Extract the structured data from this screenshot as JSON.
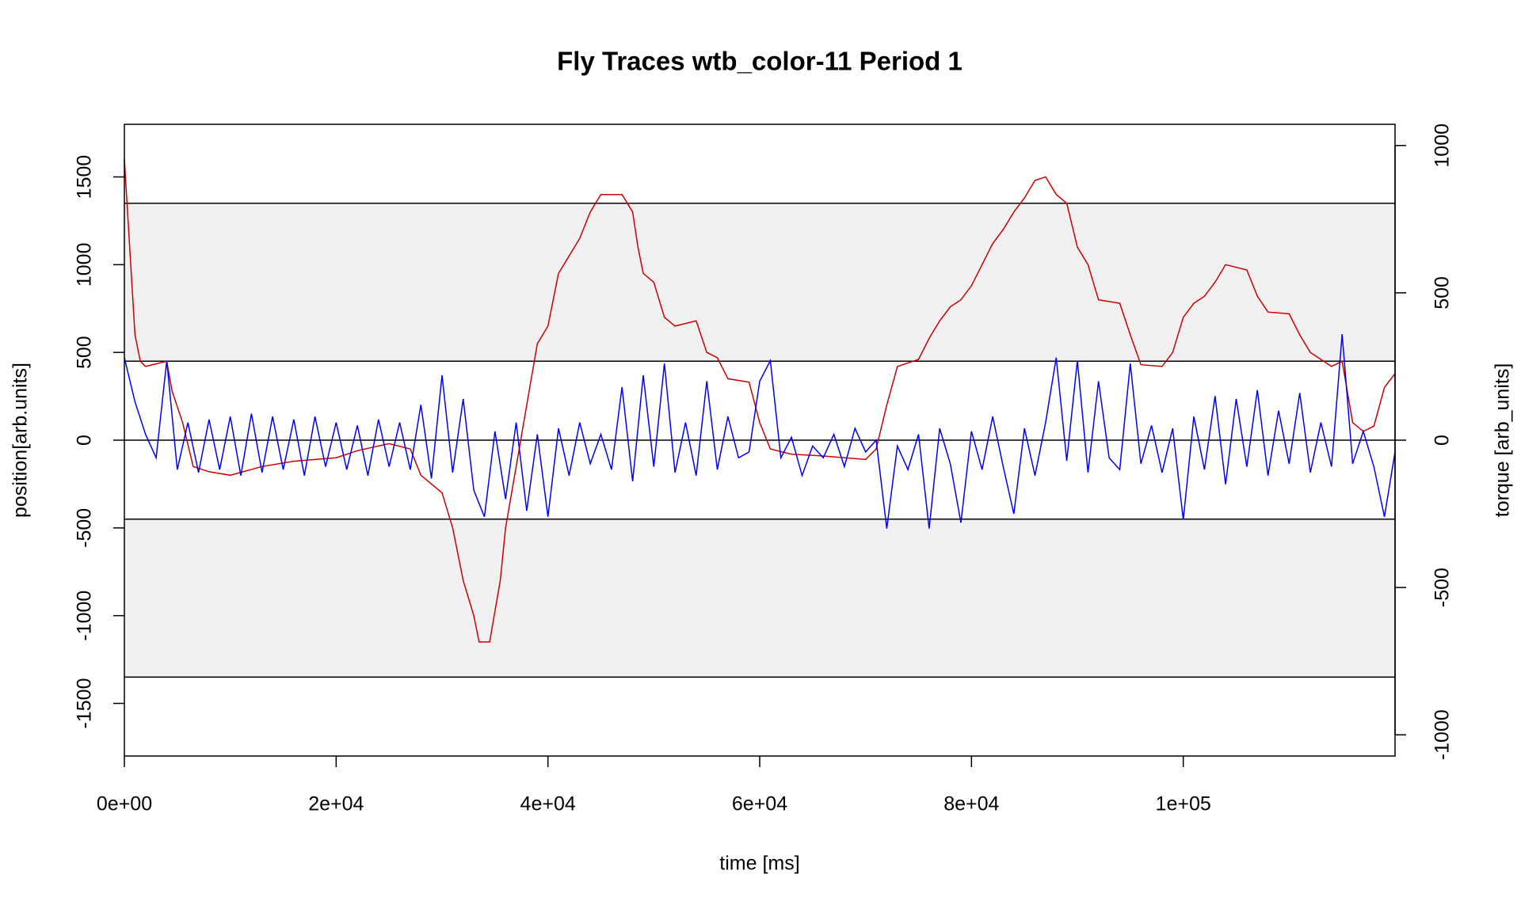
{
  "chart_data": {
    "type": "line",
    "title": "Fly Traces wtb_color-11 Period 1",
    "xlabel": "time [ms]",
    "ylabel": "position[arb.units]",
    "y2label": "torque [arb_units]",
    "xlim": [
      0,
      120000
    ],
    "xticks": [
      {
        "value": 0,
        "label": "0e+00"
      },
      {
        "value": 20000,
        "label": "2e+04"
      },
      {
        "value": 40000,
        "label": "4e+04"
      },
      {
        "value": 60000,
        "label": "6e+04"
      },
      {
        "value": 80000,
        "label": "8e+04"
      },
      {
        "value": 100000,
        "label": "1e+05"
      }
    ],
    "ylim": [
      -1800,
      1800
    ],
    "yticks": [
      -1500,
      -1000,
      -500,
      0,
      500,
      1000,
      1500
    ],
    "y2lim": [
      -1072,
      1072
    ],
    "y2ticks": [
      -1000,
      -500,
      0,
      500,
      1000
    ],
    "hlines": [
      1350,
      450,
      0,
      -450,
      -1350
    ],
    "bands": [
      [
        450,
        1350
      ],
      [
        -1350,
        -450
      ]
    ],
    "band_color": "#f0f0f0",
    "series": [
      {
        "name": "position",
        "color": "#cc0000",
        "x": [
          0,
          1000,
          1500,
          2000,
          4000,
          4500,
          5500,
          6500,
          8000,
          10000,
          13000,
          16000,
          20000,
          22000,
          25000,
          27000,
          28000,
          30000,
          31000,
          32000,
          33000,
          33500,
          34500,
          35500,
          36000,
          37000,
          38000,
          39000,
          40000,
          41000,
          42000,
          43000,
          44000,
          45000,
          47000,
          48000,
          48500,
          49000,
          50000,
          51000,
          52000,
          54000,
          55000,
          56000,
          57000,
          59000,
          60000,
          61000,
          63000,
          66000,
          70000,
          71000,
          72000,
          73000,
          75000,
          76000,
          77000,
          78000,
          79000,
          80000,
          81000,
          82000,
          83000,
          84000,
          85000,
          86000,
          87000,
          88000,
          89000,
          90000,
          91000,
          92000,
          94000,
          95000,
          96000,
          98000,
          99000,
          100000,
          101000,
          102000,
          103000,
          104000,
          106000,
          107000,
          108000,
          110000,
          111000,
          112000,
          113000,
          114000,
          115000,
          116000,
          117000,
          118000,
          119000,
          120000
        ],
        "values": [
          1600,
          600,
          450,
          420,
          450,
          280,
          100,
          -150,
          -180,
          -200,
          -150,
          -120,
          -100,
          -60,
          -20,
          -50,
          -200,
          -300,
          -500,
          -800,
          -1000,
          -1150,
          -1150,
          -800,
          -500,
          -150,
          200,
          550,
          650,
          950,
          1050,
          1150,
          1300,
          1400,
          1400,
          1300,
          1100,
          950,
          900,
          700,
          650,
          680,
          500,
          470,
          350,
          330,
          100,
          -50,
          -80,
          -90,
          -110,
          -50,
          200,
          420,
          460,
          580,
          680,
          760,
          800,
          880,
          1000,
          1120,
          1200,
          1300,
          1380,
          1480,
          1500,
          1400,
          1350,
          1100,
          1000,
          800,
          780,
          600,
          430,
          420,
          500,
          700,
          780,
          820,
          900,
          1000,
          970,
          820,
          730,
          720,
          600,
          500,
          460,
          420,
          450,
          100,
          50,
          80,
          300,
          380
        ]
      },
      {
        "name": "torque",
        "color": "#0000ff",
        "axis": "y2",
        "x": [
          0,
          1000,
          2000,
          3000,
          4000,
          5000,
          6000,
          7000,
          8000,
          9000,
          10000,
          11000,
          12000,
          13000,
          14000,
          15000,
          16000,
          17000,
          18000,
          19000,
          20000,
          21000,
          22000,
          23000,
          24000,
          25000,
          26000,
          27000,
          28000,
          29000,
          30000,
          31000,
          32000,
          33000,
          34000,
          35000,
          36000,
          37000,
          38000,
          39000,
          40000,
          41000,
          42000,
          43000,
          44000,
          45000,
          46000,
          47000,
          48000,
          49000,
          50000,
          51000,
          52000,
          53000,
          54000,
          55000,
          56000,
          57000,
          58000,
          59000,
          60000,
          61000,
          62000,
          63000,
          64000,
          65000,
          66000,
          67000,
          68000,
          69000,
          70000,
          71000,
          72000,
          73000,
          74000,
          75000,
          76000,
          77000,
          78000,
          79000,
          80000,
          81000,
          82000,
          83000,
          84000,
          85000,
          86000,
          87000,
          88000,
          89000,
          90000,
          91000,
          92000,
          93000,
          94000,
          95000,
          96000,
          97000,
          98000,
          99000,
          100000,
          101000,
          102000,
          103000,
          104000,
          105000,
          106000,
          107000,
          108000,
          109000,
          110000,
          111000,
          112000,
          113000,
          114000,
          115000,
          116000,
          117000,
          118000,
          119000,
          120000
        ],
        "values": [
          280,
          130,
          20,
          -60,
          270,
          -100,
          60,
          -110,
          70,
          -100,
          80,
          -120,
          90,
          -110,
          80,
          -100,
          70,
          -120,
          80,
          -90,
          60,
          -100,
          50,
          -120,
          70,
          -90,
          60,
          -100,
          120,
          -130,
          220,
          -110,
          140,
          -170,
          -260,
          30,
          -200,
          60,
          -240,
          20,
          -260,
          40,
          -120,
          60,
          -80,
          20,
          -100,
          180,
          -140,
          220,
          -90,
          260,
          -110,
          60,
          -120,
          200,
          -100,
          80,
          -60,
          -40,
          200,
          270,
          -60,
          10,
          -120,
          -20,
          -60,
          20,
          -90,
          40,
          -40,
          0,
          -300,
          -20,
          -100,
          20,
          -300,
          40,
          -80,
          -280,
          30,
          -100,
          80,
          -90,
          -250,
          40,
          -120,
          60,
          280,
          -70,
          270,
          -110,
          200,
          -60,
          -100,
          260,
          -80,
          50,
          -110,
          40,
          -270,
          80,
          -100,
          150,
          -150,
          140,
          -90,
          170,
          -120,
          100,
          -80,
          160,
          -110,
          60,
          -90,
          360,
          -80,
          30,
          -90,
          -260,
          -40
        ]
      }
    ]
  }
}
